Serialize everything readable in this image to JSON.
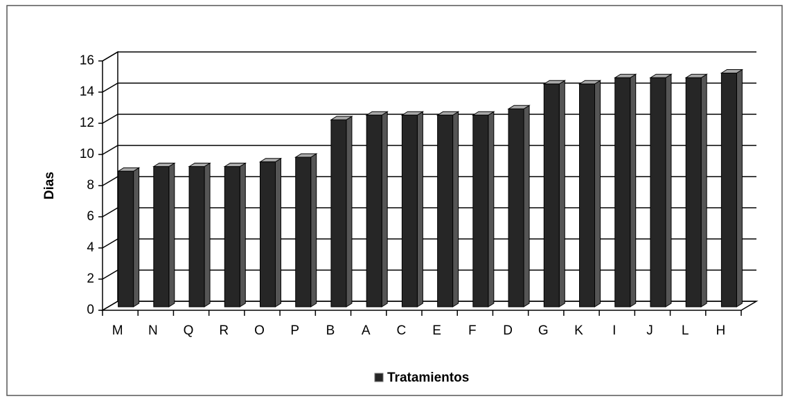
{
  "chart_data": {
    "type": "bar",
    "y_label": "Dias",
    "categories": [
      "M",
      "N",
      "Q",
      "R",
      "O",
      "P",
      "B",
      "A",
      "C",
      "E",
      "F",
      "D",
      "G",
      "K",
      "I",
      "J",
      "L",
      "H"
    ],
    "series": [
      {
        "name": "Tratamientos",
        "color": "#262626",
        "values": [
          8.7,
          9,
          9,
          9,
          9.3,
          9.6,
          12,
          12.3,
          12.3,
          12.3,
          12.3,
          12.7,
          14.3,
          14.3,
          14.7,
          14.7,
          14.7,
          15
        ]
      }
    ],
    "ylim": [
      0,
      16
    ],
    "yticks": [
      0,
      2,
      4,
      6,
      8,
      10,
      12,
      14,
      16
    ],
    "grid": true
  }
}
